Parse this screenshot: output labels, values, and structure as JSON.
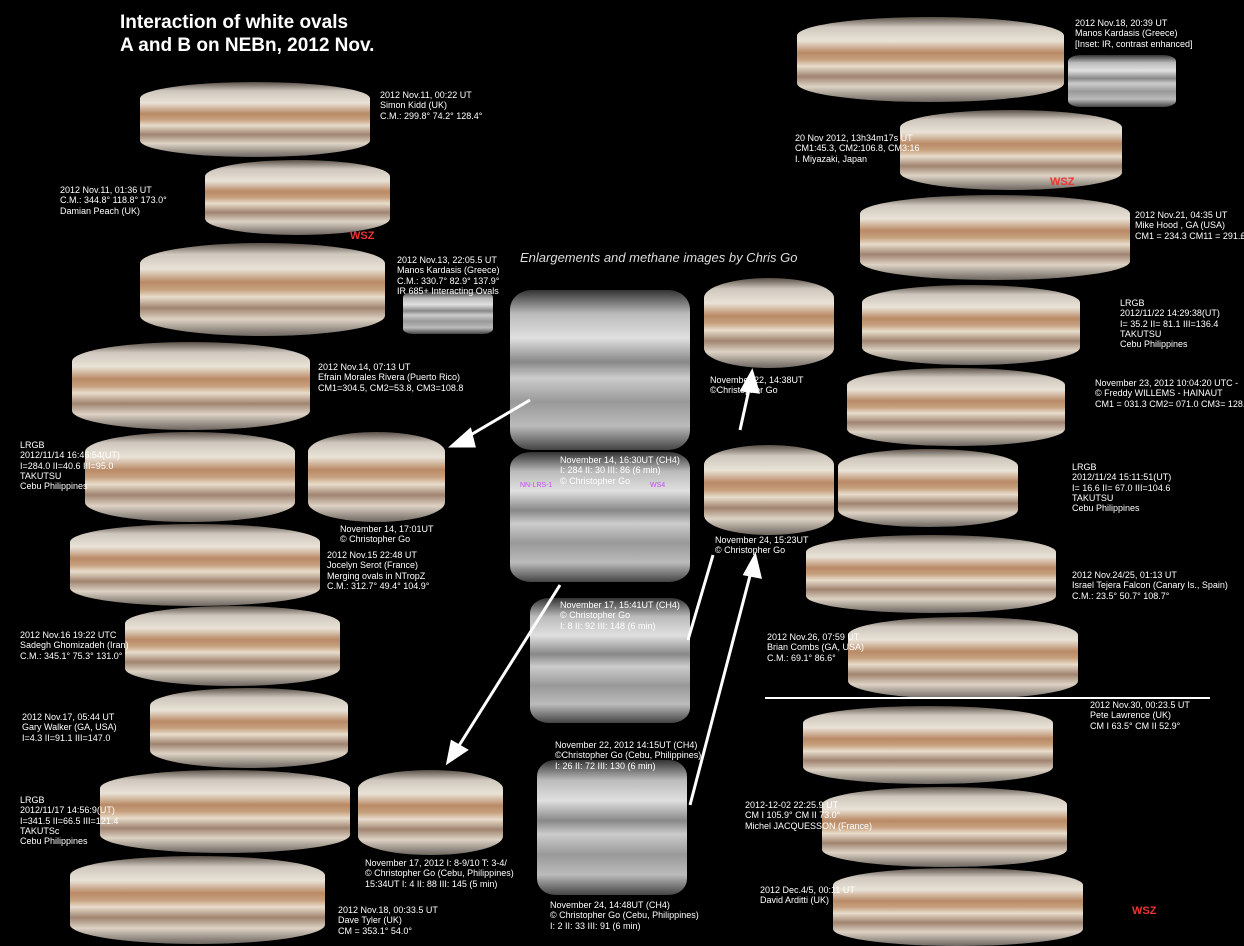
{
  "title": [
    "Interaction of white ovals",
    "A and B on NEBn, 2012 Nov."
  ],
  "subtitle": "Enlargements and methane images by Chris Go",
  "captions": [
    {
      "lines": [
        "2012 Nov.11, 00:22 UT",
        "Simon Kidd (UK)",
        "C.M.: 299.8° 74.2° 128.4°"
      ]
    },
    {
      "lines": [
        "2012 Nov.11, 01:36 UT",
        "C.M.: 344.8° 118.8° 173.0°",
        "Damian Peach (UK)"
      ]
    },
    {
      "lines": [
        "2012 Nov.13, 22:05.5 UT",
        "Manos Kardasis (Greece)",
        "C.M.: 330.7° 82.9° 137.9°",
        "IR 685+ Interacting Ovals"
      ]
    },
    {
      "lines": [
        "2012 Nov.14, 07:13 UT",
        "Efrain Morales Rivera (Puerto Rico)",
        "CM1=304.5, CM2=53.8, CM3=108.8"
      ]
    },
    {
      "lines": [
        "LRGB",
        "2012/11/14 16:46:54(UT)",
        "I=284.0 II=40.6 III=95.0",
        "TAKUTSU",
        "Cebu Philippines"
      ]
    },
    {
      "lines": [
        "November 14, 17:01UT",
        "© Christopher Go"
      ]
    },
    {
      "lines": [
        "2012 Nov.15 22:48 UT",
        "Jocelyn Serot (France)",
        "Merging ovals in NTropZ",
        "C.M.: 312.7° 49.4° 104.9°"
      ]
    },
    {
      "lines": [
        "2012 Nov.16 19:22 UTC",
        "Sadegh Ghomizadeh (Iran)",
        "C.M.: 345.1° 75.3° 131.0°"
      ]
    },
    {
      "lines": [
        "2012 Nov.17, 05:44 UT",
        "Gary Walker (GA, USA)",
        "I=4.3 II=91.1 III=147.0"
      ]
    },
    {
      "lines": [
        "LRGB",
        "2012/11/17 14:56:9(UT)",
        "I=341.5 II=66.5 III=121.4",
        "TAKUTSc",
        "Cebu Philippines"
      ]
    },
    {
      "lines": [
        "November 17, 2012 I: 8-9/10 T: 3-4/",
        "© Christopher Go (Cebu, Philippines)",
        "15:34UT I: 4 II: 88 III: 145 (5 min)"
      ]
    },
    {
      "lines": [
        "2012 Nov.18, 00:33.5 UT",
        "Dave Tyler (UK)",
        "CM = 353.1° 54.0°"
      ]
    },
    {
      "lines": [
        "November 14, 16:30UT (CH4)",
        "I: 284 II: 30 III: 86 (6 min)",
        "© Christopher Go"
      ]
    },
    {
      "lines": [
        "November 17, 15:41UT (CH4)",
        "© Christopher Go",
        "I: 8 II: 92 III: 148 (6 min)"
      ]
    },
    {
      "lines": [
        "November 22, 2012 14:15UT (CH4)",
        "©Christopher Go (Cebu, Philippines)",
        "I: 26 II: 72 III: 130 (6 min)"
      ]
    },
    {
      "lines": [
        "November 24, 14:48UT (CH4)",
        "© Christopher Go (Cebu, Philippines)",
        "I: 2 II: 33 III: 91 (6 min)"
      ]
    },
    {
      "lines": [
        "November 22, 14:38UT",
        "©Christopher Go"
      ]
    },
    {
      "lines": [
        "November 24, 15:23UT",
        "© Christopher Go"
      ]
    },
    {
      "lines": [
        "2012 Nov.18, 20:39 UT",
        "Manos Kardasis (Greece)",
        "[Inset: IR, contrast enhanced]"
      ]
    },
    {
      "lines": [
        "20 Nov 2012, 13h34m17s UT",
        "CM1:45.3, CM2:106.8, CM3:16",
        "I. Miyazaki, Japan"
      ]
    },
    {
      "lines": [
        "2012 Nov.21, 04:35 UT",
        "Mike Hood , GA (USA)",
        "CM1 = 234.3 CM11 = 291.£"
      ]
    },
    {
      "lines": [
        "LRGB",
        "2012/11/22 14:29:38(UT)",
        "I= 35.2 II= 81.1 III=136.4",
        "TAKUTSU",
        "Cebu Philippines"
      ]
    },
    {
      "lines": [
        "November 23, 2012 10:04:20 UTC -",
        "© Freddy WILLEMS - HAINAUT",
        "CM1 = 031.3 CM2= 071.0 CM3= 128.5"
      ]
    },
    {
      "lines": [
        "LRGB",
        "2012/11/24 15:11:51(UT)",
        "I= 16.6 II= 67.0 III=104.6",
        "TAKUTSU",
        "Cebu Philippines"
      ]
    },
    {
      "lines": [
        "2012 Nov.24/25, 01:13 UT",
        "Israel Tejera Falcon (Canary Is., Spain)",
        "C.M.: 23.5° 50.7° 108.7°"
      ]
    },
    {
      "lines": [
        "2012 Nov.26, 07:59 UT",
        "Brian Combs (GA, USA)",
        "C.M.: 69.1° 86.6°"
      ]
    },
    {
      "lines": [
        "2012 Nov.30, 00:23.5 UT",
        "Pete Lawrence (UK)",
        "CM I 63.5° CM II 52.9°"
      ]
    },
    {
      "lines": [
        "2012-12-02 22:25.9 UT",
        "CM I 105.9° CM II 73.0°",
        "Michel JACQUESSON (France)"
      ]
    },
    {
      "lines": [
        "2012 Dec.4/5, 00:11 UT",
        "David Arditti (UK)"
      ]
    }
  ],
  "feature_labels": [
    "NN-LRS-1",
    "WS4"
  ],
  "wsz_labels": [
    "WSZ",
    "WSZ",
    "WSZ"
  ]
}
